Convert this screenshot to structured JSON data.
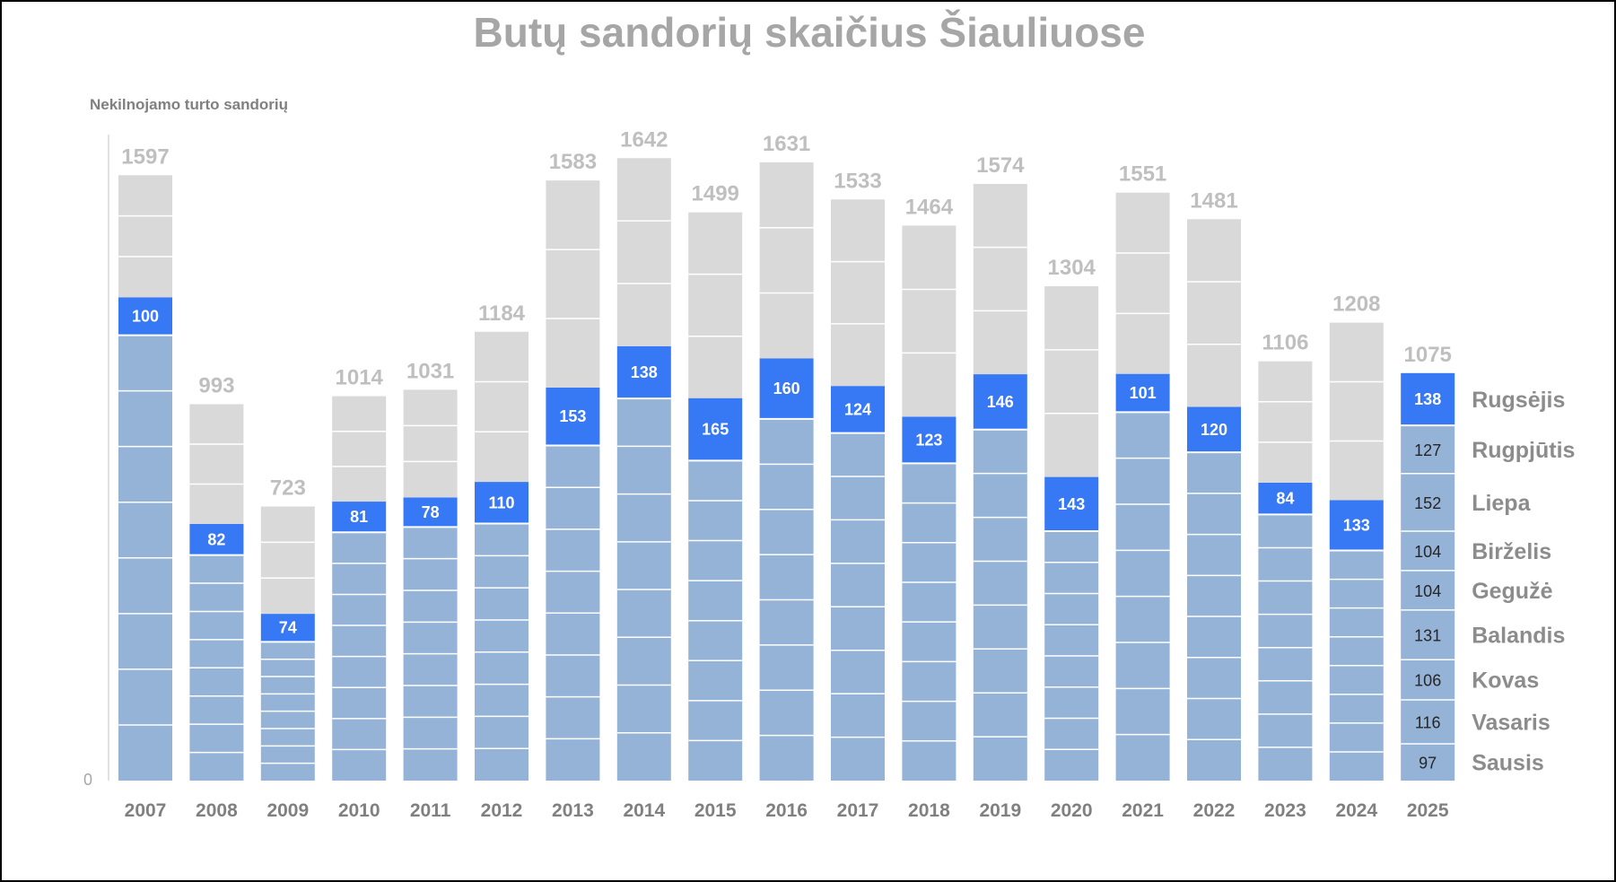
{
  "colors": {
    "past_month": "#95b3d7",
    "highlight_month": "#3778f5",
    "future_month": "#d9d9d9",
    "current_year_month": "#95b3d7",
    "separator": "#ffffff",
    "total_label": "#bfbfbf",
    "axis_text": "#808080"
  },
  "chart_data": {
    "type": "bar",
    "stacked": true,
    "title": "Butų sandorių skaičius Šiauliuose",
    "ylabel": "Nekilnojamo turto sandorių",
    "y_zero_label": "0",
    "ylim": [
      0,
      1700
    ],
    "legend": "none",
    "categories": [
      "2007",
      "2008",
      "2009",
      "2010",
      "2011",
      "2012",
      "2013",
      "2014",
      "2015",
      "2016",
      "2017",
      "2018",
      "2019",
      "2020",
      "2021",
      "2022",
      "2023",
      "2024",
      "2025"
    ],
    "totals": [
      1597,
      993,
      723,
      1014,
      1031,
      1184,
      1583,
      1642,
      1499,
      1631,
      1533,
      1464,
      1574,
      1304,
      1551,
      1481,
      1106,
      1208,
      1075
    ],
    "highlight_month_values": [
      100,
      82,
      74,
      81,
      78,
      110,
      153,
      138,
      165,
      160,
      124,
      123,
      146,
      143,
      101,
      120,
      84,
      133,
      138
    ],
    "cumulative_through_highlight": [
      1275,
      677,
      440,
      736,
      747,
      788,
      1037,
      1146,
      1009,
      1114,
      1041,
      960,
      1072,
      801,
      1073,
      986,
      786,
      740,
      1075
    ],
    "months_2025": [
      {
        "name": "Sausis",
        "value": 97
      },
      {
        "name": "Vasaris",
        "value": 116
      },
      {
        "name": "Kovas",
        "value": 106
      },
      {
        "name": "Balandis",
        "value": 131
      },
      {
        "name": "Gegužė",
        "value": 104
      },
      {
        "name": "Birželis",
        "value": 104
      },
      {
        "name": "Liepa",
        "value": 152
      },
      {
        "name": "Rugpjūtis",
        "value": 127
      },
      {
        "name": "Rugsėjis",
        "value": 138
      }
    ]
  }
}
